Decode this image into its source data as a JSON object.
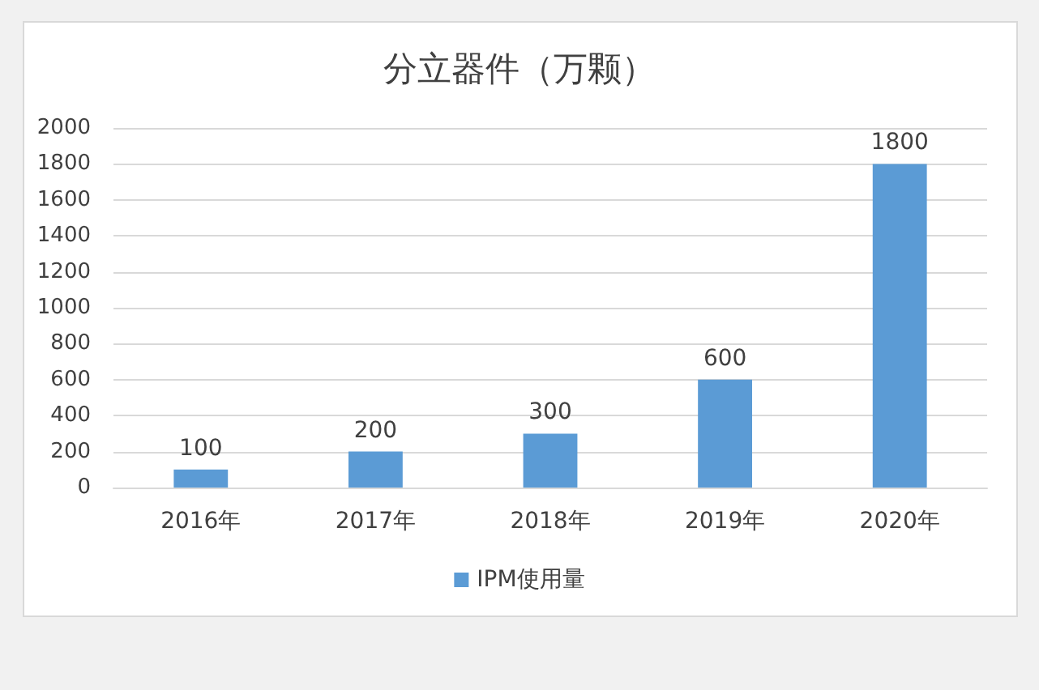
{
  "chart_data": {
    "type": "bar",
    "title": "分立器件（万颗）",
    "categories": [
      "2016年",
      "2017年",
      "2018年",
      "2019年",
      "2020年"
    ],
    "series": [
      {
        "name": "IPM使用量",
        "color": "#5b9bd5",
        "values": [
          100,
          200,
          300,
          600,
          1800
        ]
      }
    ],
    "ylim": [
      0,
      2000
    ],
    "yticks": [
      0,
      200,
      400,
      600,
      800,
      1000,
      1200,
      1400,
      1600,
      1800,
      2000
    ],
    "grid": "y",
    "legend": "bottom",
    "data_labels": true
  }
}
